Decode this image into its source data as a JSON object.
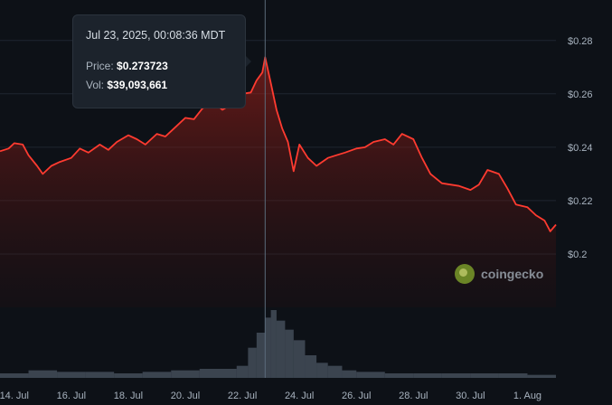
{
  "tooltip": {
    "date": "Jul 23, 2025, 00:08:36 MDT",
    "price_label": "Price:",
    "price_value": "$0.273723",
    "vol_label": "Vol:",
    "vol_value": "$39,093,661"
  },
  "watermark": {
    "text": "coingecko",
    "icon": "coingecko-logo-icon"
  },
  "colors": {
    "line": "#ff3b30",
    "background": "#0d1117",
    "volume": "#4b5563",
    "crosshair": "#5b6b7b"
  },
  "chart_data": {
    "type": "area",
    "title": "",
    "xlabel": "",
    "ylabel": "",
    "ylim": [
      0.18,
      0.285
    ],
    "y_ticks": [
      "$0.28",
      "$0.26",
      "$0.24",
      "$0.22",
      "$0.2"
    ],
    "y_tick_values": [
      0.28,
      0.26,
      0.24,
      0.22,
      0.2
    ],
    "x_ticks": [
      "14. Jul",
      "16. Jul",
      "18. Jul",
      "20. Jul",
      "22. Jul",
      "24. Jul",
      "26. Jul",
      "28. Jul",
      "30. Jul",
      "1. Aug"
    ],
    "x_day_range": [
      13.5,
      33.0
    ],
    "x_tick_days": [
      14,
      16,
      18,
      20,
      22,
      24,
      26,
      28,
      30,
      32
    ],
    "grid": true,
    "highlight_day": 22.8,
    "price": {
      "day": [
        13.5,
        13.8,
        14.0,
        14.3,
        14.5,
        14.8,
        15.0,
        15.3,
        15.6,
        16.0,
        16.3,
        16.6,
        17.0,
        17.3,
        17.6,
        18.0,
        18.3,
        18.6,
        19.0,
        19.3,
        19.6,
        20.0,
        20.3,
        20.6,
        21.0,
        21.3,
        21.6,
        22.0,
        22.3,
        22.5,
        22.7,
        22.8,
        23.0,
        23.2,
        23.4,
        23.6,
        23.8,
        24.0,
        24.3,
        24.6,
        25.0,
        25.3,
        25.6,
        26.0,
        26.3,
        26.6,
        27.0,
        27.3,
        27.6,
        28.0,
        28.3,
        28.6,
        29.0,
        29.3,
        29.6,
        30.0,
        30.3,
        30.6,
        31.0,
        31.3,
        31.6,
        32.0,
        32.3,
        32.6,
        32.8,
        33.0
      ],
      "value": [
        0.2385,
        0.2395,
        0.2415,
        0.241,
        0.237,
        0.233,
        0.23,
        0.233,
        0.2345,
        0.236,
        0.2395,
        0.238,
        0.241,
        0.239,
        0.242,
        0.2445,
        0.243,
        0.241,
        0.245,
        0.244,
        0.247,
        0.251,
        0.2505,
        0.2545,
        0.257,
        0.254,
        0.256,
        0.26,
        0.2605,
        0.265,
        0.268,
        0.2737,
        0.264,
        0.254,
        0.247,
        0.242,
        0.231,
        0.241,
        0.236,
        0.233,
        0.236,
        0.237,
        0.238,
        0.2395,
        0.24,
        0.242,
        0.243,
        0.241,
        0.245,
        0.243,
        0.236,
        0.23,
        0.2265,
        0.226,
        0.2255,
        0.224,
        0.226,
        0.2315,
        0.23,
        0.2245,
        0.2185,
        0.2175,
        0.2145,
        0.2125,
        0.2085,
        0.211
      ]
    },
    "volume": {
      "day": [
        13.5,
        14.5,
        15.5,
        16.5,
        17.5,
        18.5,
        19.5,
        20.5,
        21.3,
        21.8,
        22.2,
        22.5,
        22.8,
        23.0,
        23.2,
        23.5,
        23.8,
        24.2,
        24.6,
        25.0,
        25.5,
        26.0,
        27.0,
        28.0,
        29.0,
        30.0,
        31.0,
        32.0,
        33.0
      ],
      "value": [
        3,
        5,
        4,
        4,
        3,
        4,
        5,
        6,
        6,
        8,
        20,
        30,
        40,
        45,
        38,
        32,
        25,
        15,
        10,
        8,
        5,
        4,
        3,
        3,
        3,
        3,
        3,
        2,
        2
      ]
    }
  }
}
